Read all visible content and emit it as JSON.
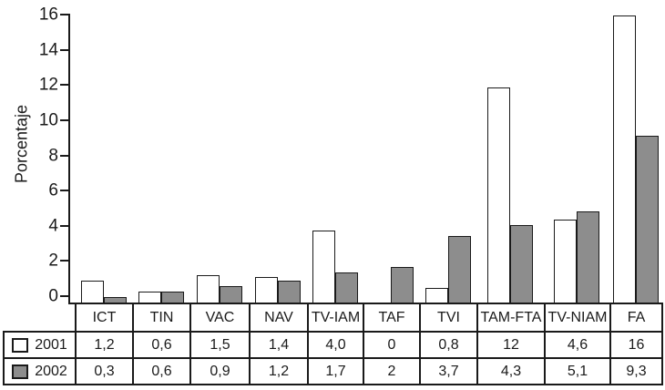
{
  "figure": {
    "background": "#ffffff"
  },
  "chart_data": {
    "type": "bar",
    "title": "",
    "xlabel": "",
    "ylabel": "Porcentaje",
    "ylim": [
      0,
      16
    ],
    "yticks": [
      0,
      2,
      4,
      6,
      8,
      10,
      12,
      14,
      16
    ],
    "grid": false,
    "legend_position": "table-left",
    "categories": [
      "ICT",
      "TIN",
      "VAC",
      "NAV",
      "TV-IAM",
      "TAF",
      "TVI",
      "TAM-FTA",
      "TV-NIAM",
      "FA"
    ],
    "series": [
      {
        "name": "2001",
        "color": "#ffffff",
        "values": [
          1.2,
          0.6,
          1.5,
          1.4,
          4.0,
          0,
          0.8,
          12,
          4.6,
          16
        ],
        "display_values": [
          "1,2",
          "0,6",
          "1,5",
          "1,4",
          "4,0",
          "0",
          "0,8",
          "12",
          "4,6",
          "16"
        ]
      },
      {
        "name": "2002",
        "color": "#8d8d8d",
        "values": [
          0.3,
          0.6,
          0.9,
          1.2,
          1.7,
          2,
          3.7,
          4.3,
          5.1,
          9.3
        ],
        "display_values": [
          "0,3",
          "0,6",
          "0,9",
          "1,2",
          "1,7",
          "2",
          "3,7",
          "4,3",
          "5,1",
          "9,3"
        ]
      }
    ]
  },
  "colors": {
    "axis_line": "#1a1a1a",
    "bar_outline": "#1a1a1a",
    "bar_2001_fill": "#ffffff",
    "bar_2002_fill": "#8d8d8d",
    "table_border": "#1a1a1a",
    "text": "#1a1a1a"
  }
}
